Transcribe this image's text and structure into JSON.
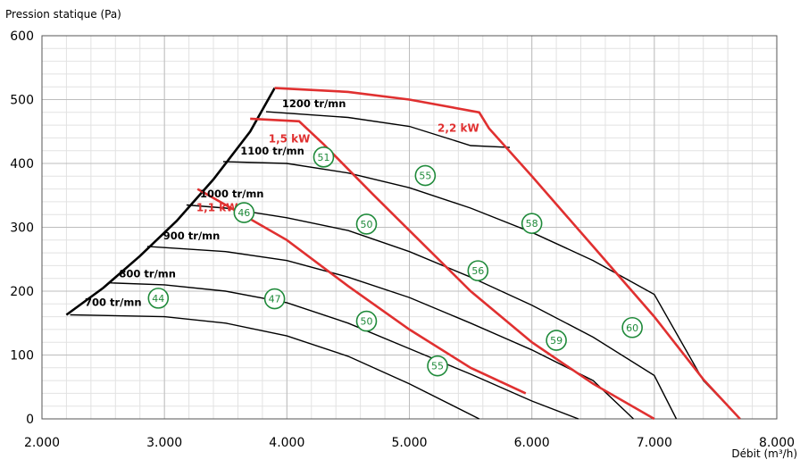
{
  "chart_data": {
    "type": "line",
    "title": "",
    "ylabel": "Pression statique (Pa)",
    "xlabel": "Débit (m³/h)",
    "xlim": [
      2000,
      8000
    ],
    "ylim": [
      0,
      600
    ],
    "x_ticks": [
      2000,
      3000,
      4000,
      5000,
      6000,
      7000,
      8000
    ],
    "x_tick_labels": [
      "2.000",
      "3.000",
      "4.000",
      "5.000",
      "6.000",
      "7.000",
      "8.000"
    ],
    "y_ticks": [
      0,
      100,
      200,
      300,
      400,
      500,
      600
    ],
    "y_tick_labels": [
      "0",
      "100",
      "200",
      "300",
      "400",
      "500",
      "600"
    ],
    "grid": true,
    "speed_curves": [
      {
        "label": "700 tr/mn",
        "label_at": [
          2350,
          177
        ],
        "points": [
          [
            2230,
            163
          ],
          [
            3000,
            160
          ],
          [
            3500,
            150
          ],
          [
            4000,
            130
          ],
          [
            4500,
            98
          ],
          [
            5000,
            55
          ],
          [
            5570,
            0
          ]
        ]
      },
      {
        "label": "800 tr/mn",
        "label_at": [
          2630,
          222
        ],
        "points": [
          [
            2550,
            213
          ],
          [
            3000,
            210
          ],
          [
            3500,
            200
          ],
          [
            4000,
            182
          ],
          [
            4500,
            150
          ],
          [
            5000,
            110
          ],
          [
            5500,
            70
          ],
          [
            6000,
            28
          ],
          [
            6380,
            0
          ]
        ]
      },
      {
        "label": "900 tr/mn",
        "label_at": [
          2990,
          281
        ],
        "points": [
          [
            2860,
            270
          ],
          [
            3500,
            262
          ],
          [
            4000,
            248
          ],
          [
            4500,
            222
          ],
          [
            5000,
            190
          ],
          [
            5500,
            150
          ],
          [
            6000,
            108
          ],
          [
            6500,
            60
          ],
          [
            6830,
            0
          ]
        ]
      },
      {
        "label": "1000 tr/mn",
        "label_at": [
          3290,
          347
        ],
        "points": [
          [
            3180,
            335
          ],
          [
            3500,
            330
          ],
          [
            4000,
            315
          ],
          [
            4500,
            295
          ],
          [
            5000,
            262
          ],
          [
            5500,
            222
          ],
          [
            6000,
            178
          ],
          [
            6500,
            128
          ],
          [
            7000,
            68
          ],
          [
            7180,
            0
          ]
        ]
      },
      {
        "label": "1100 tr/mn",
        "label_at": [
          3620,
          414
        ],
        "points": [
          [
            3480,
            403
          ],
          [
            4000,
            400
          ],
          [
            4500,
            385
          ],
          [
            5000,
            362
          ],
          [
            5500,
            330
          ],
          [
            6000,
            292
          ],
          [
            6500,
            248
          ],
          [
            7000,
            195
          ],
          [
            7400,
            60
          ],
          [
            7700,
            0
          ]
        ]
      },
      {
        "label": "1200 tr/mn",
        "label_at": [
          3960,
          488
        ],
        "points": [
          [
            3830,
            481
          ],
          [
            4500,
            472
          ],
          [
            5000,
            458
          ],
          [
            5500,
            428
          ],
          [
            5820,
            425
          ]
        ]
      }
    ],
    "power_curves": [
      {
        "label": "2,2 kW",
        "label_at": [
          5230,
          450
        ],
        "points": [
          [
            3900,
            518
          ],
          [
            4500,
            512
          ],
          [
            5000,
            500
          ],
          [
            5570,
            480
          ],
          [
            5650,
            455
          ],
          [
            6000,
            380
          ],
          [
            6500,
            270
          ],
          [
            7000,
            160
          ],
          [
            7400,
            62
          ],
          [
            7700,
            0
          ]
        ]
      },
      {
        "label": "1,5 kW",
        "label_at": [
          3850,
          433
        ],
        "points": [
          [
            3700,
            470
          ],
          [
            4100,
            466
          ],
          [
            4300,
            430
          ],
          [
            4700,
            352
          ],
          [
            5000,
            295
          ],
          [
            5500,
            200
          ],
          [
            6000,
            120
          ],
          [
            6500,
            55
          ],
          [
            7000,
            0
          ]
        ]
      },
      {
        "label": "1,1 kW",
        "label_at": [
          3260,
          325
        ],
        "points": [
          [
            3270,
            360
          ],
          [
            3500,
            335
          ],
          [
            4000,
            280
          ],
          [
            4500,
            208
          ],
          [
            5000,
            140
          ],
          [
            5500,
            80
          ],
          [
            5950,
            40
          ]
        ]
      }
    ],
    "system_curve": {
      "points": [
        [
          2200,
          163
        ],
        [
          2500,
          205
        ],
        [
          2800,
          255
        ],
        [
          3100,
          310
        ],
        [
          3400,
          375
        ],
        [
          3700,
          450
        ],
        [
          3900,
          518
        ]
      ]
    },
    "sound_levels": [
      {
        "value": 44,
        "x": 2950,
        "y": 189
      },
      {
        "value": 46,
        "x": 3650,
        "y": 323
      },
      {
        "value": 47,
        "x": 3900,
        "y": 188
      },
      {
        "value": 50,
        "x": 4650,
        "y": 305
      },
      {
        "value": 50,
        "x": 4650,
        "y": 153
      },
      {
        "value": 51,
        "x": 4300,
        "y": 410
      },
      {
        "value": 55,
        "x": 5130,
        "y": 381
      },
      {
        "value": 55,
        "x": 5230,
        "y": 83
      },
      {
        "value": 56,
        "x": 5560,
        "y": 232
      },
      {
        "value": 58,
        "x": 6000,
        "y": 306
      },
      {
        "value": 59,
        "x": 6200,
        "y": 123
      },
      {
        "value": 60,
        "x": 6820,
        "y": 143
      }
    ],
    "colors": {
      "speed": "#000000",
      "power": "#e03030",
      "sound": "#1f8a3a",
      "grid": "#dddddd"
    }
  }
}
